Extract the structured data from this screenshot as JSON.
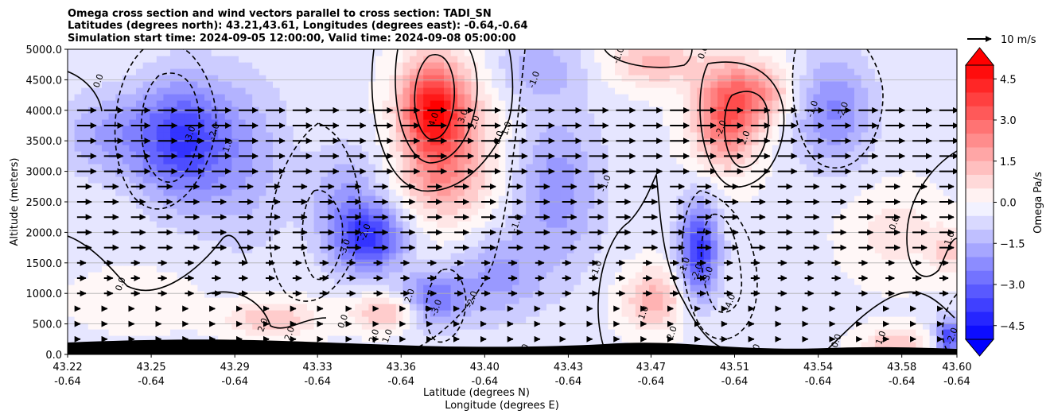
{
  "chart_data": {
    "type": "contour",
    "title_lines": [
      "Omega cross section and wind vectors parallel to cross section: TADI_SN",
      "Latitudes (degrees north): 43.21,43.61, Longitudes (degrees east): -0.64,-0.64",
      "Simulation start time: 2024-09-05 12:00:00, Valid time: 2024-09-08 05:00:00"
    ],
    "xlabel_line1": "Latitude (degrees N)",
    "xlabel_line2": "Longitude (degrees E)",
    "ylabel": "Altitude (meters)",
    "colorbar_label": "Omega Pa/s",
    "quiver_key_label": "10 m/s",
    "ylim": [
      0,
      5000
    ],
    "yticks": [
      "0.0",
      "500.0",
      "1000.0",
      "1500.0",
      "2000.0",
      "2500.0",
      "3000.0",
      "3500.0",
      "4000.0",
      "4500.0",
      "5000.0"
    ],
    "xticks": [
      {
        "lat": "43.22",
        "lon": "-0.64"
      },
      {
        "lat": "43.25",
        "lon": "-0.64"
      },
      {
        "lat": "43.29",
        "lon": "-0.64"
      },
      {
        "lat": "43.33",
        "lon": "-0.64"
      },
      {
        "lat": "43.36",
        "lon": "-0.64"
      },
      {
        "lat": "43.40",
        "lon": "-0.64"
      },
      {
        "lat": "43.43",
        "lon": "-0.64"
      },
      {
        "lat": "43.47",
        "lon": "-0.64"
      },
      {
        "lat": "43.51",
        "lon": "-0.64"
      },
      {
        "lat": "43.54",
        "lon": "-0.64"
      },
      {
        "lat": "43.58",
        "lon": "-0.64"
      },
      {
        "lat": "43.60",
        "lon": "-0.64"
      }
    ],
    "colorbar_ticks": [
      "4.5",
      "3.0",
      "1.5",
      "0.0",
      "−1.5",
      "−3.0",
      "−4.5"
    ],
    "colorbar_range": [
      -5.0,
      5.0
    ],
    "grid": true,
    "cells": [
      {
        "x": 0.05,
        "y": 3600,
        "v": -1.5,
        "s": 0.06,
        "h": 700
      },
      {
        "x": 0.13,
        "y": 3500,
        "v": -3.2,
        "s": 0.05,
        "h": 1000
      },
      {
        "x": 0.2,
        "y": 3200,
        "v": -1.2,
        "s": 0.05,
        "h": 1400
      },
      {
        "x": 0.08,
        "y": 900,
        "v": 0.4,
        "s": 0.07,
        "h": 500
      },
      {
        "x": 0.23,
        "y": 600,
        "v": 1.6,
        "s": 0.05,
        "h": 300
      },
      {
        "x": 0.34,
        "y": 1900,
        "v": -3.3,
        "s": 0.038,
        "h": 550
      },
      {
        "x": 0.31,
        "y": 2500,
        "v": -1.4,
        "s": 0.04,
        "h": 900
      },
      {
        "x": 0.36,
        "y": 700,
        "v": 1.8,
        "s": 0.04,
        "h": 280
      },
      {
        "x": 0.41,
        "y": 4000,
        "v": 4.6,
        "s": 0.036,
        "h": 800
      },
      {
        "x": 0.44,
        "y": 3300,
        "v": 1.6,
        "s": 0.05,
        "h": 1300
      },
      {
        "x": 0.41,
        "y": 2800,
        "v": 1.0,
        "s": 0.04,
        "h": 500
      },
      {
        "x": 0.41,
        "y": 900,
        "v": -2.4,
        "s": 0.035,
        "h": 450
      },
      {
        "x": 0.48,
        "y": 1300,
        "v": -1.6,
        "s": 0.05,
        "h": 700
      },
      {
        "x": 0.55,
        "y": 2700,
        "v": -1.7,
        "s": 0.05,
        "h": 1300
      },
      {
        "x": 0.53,
        "y": 4700,
        "v": -1.2,
        "s": 0.05,
        "h": 500
      },
      {
        "x": 0.66,
        "y": 4800,
        "v": 1.8,
        "s": 0.05,
        "h": 400
      },
      {
        "x": 0.66,
        "y": 900,
        "v": 1.9,
        "s": 0.035,
        "h": 500
      },
      {
        "x": 0.71,
        "y": 1700,
        "v": -3.6,
        "s": 0.022,
        "h": 800
      },
      {
        "x": 0.74,
        "y": 3900,
        "v": 3.4,
        "s": 0.036,
        "h": 800
      },
      {
        "x": 0.78,
        "y": 4300,
        "v": 2.0,
        "s": 0.04,
        "h": 500
      },
      {
        "x": 0.86,
        "y": 4000,
        "v": -2.0,
        "s": 0.045,
        "h": 900
      },
      {
        "x": 0.93,
        "y": 2000,
        "v": 0.9,
        "s": 0.05,
        "h": 700
      },
      {
        "x": 0.93,
        "y": 200,
        "v": 1.6,
        "s": 0.035,
        "h": 250
      },
      {
        "x": 0.99,
        "y": 300,
        "v": -3.2,
        "s": 0.014,
        "h": 300
      },
      {
        "x": 0.99,
        "y": 1700,
        "v": 1.2,
        "s": 0.02,
        "h": 400
      }
    ],
    "contour_labels": [
      {
        "text": "0.0",
        "x": 0.035,
        "y": 4480
      },
      {
        "text": "-3.0",
        "x": 0.138,
        "y": 3600
      },
      {
        "text": "-2.0",
        "x": 0.165,
        "y": 3650
      },
      {
        "text": "-1.0",
        "x": 0.18,
        "y": 3400
      },
      {
        "text": "0.0",
        "x": 0.06,
        "y": 1150
      },
      {
        "text": "2.0",
        "x": 0.22,
        "y": 480
      },
      {
        "text": "2.0",
        "x": 0.25,
        "y": 340
      },
      {
        "text": "0.0",
        "x": 0.31,
        "y": 540
      },
      {
        "text": "-3.0",
        "x": 0.312,
        "y": 1750
      },
      {
        "text": "-2.0",
        "x": 0.335,
        "y": 2000
      },
      {
        "text": "2.0",
        "x": 0.345,
        "y": 300
      },
      {
        "text": "1.0",
        "x": 0.36,
        "y": 300
      },
      {
        "text": "2.0",
        "x": 0.385,
        "y": 960
      },
      {
        "text": "-3.0",
        "x": 0.415,
        "y": 760
      },
      {
        "text": "-2.0",
        "x": 0.455,
        "y": 900
      },
      {
        "text": "4.0",
        "x": 0.412,
        "y": 3850
      },
      {
        "text": "3.0",
        "x": 0.445,
        "y": 3900
      },
      {
        "text": "2.0",
        "x": 0.458,
        "y": 3800
      },
      {
        "text": "0.0",
        "x": 0.485,
        "y": 3550
      },
      {
        "text": "1.0",
        "x": 0.494,
        "y": 3700
      },
      {
        "text": "-1.0",
        "x": 0.525,
        "y": 4500
      },
      {
        "text": "-1.0",
        "x": 0.605,
        "y": 2800
      },
      {
        "text": "-1.0",
        "x": 0.505,
        "y": 2150
      },
      {
        "text": "-1.0",
        "x": 0.595,
        "y": 1400
      },
      {
        "text": "0",
        "x": 0.515,
        "y": 120
      },
      {
        "text": "1.0",
        "x": 0.648,
        "y": 680
      },
      {
        "text": "2.0",
        "x": 0.68,
        "y": 350
      },
      {
        "text": "-1.0",
        "x": 0.694,
        "y": 1450
      },
      {
        "text": "-2.0",
        "x": 0.708,
        "y": 1350
      },
      {
        "text": "-3.0",
        "x": 0.72,
        "y": 1300
      },
      {
        "text": "-4.0",
        "x": 0.745,
        "y": 850
      },
      {
        "text": "0",
        "x": 0.775,
        "y": 120
      },
      {
        "text": "-1.0",
        "x": 0.62,
        "y": 4900
      },
      {
        "text": "0.0",
        "x": 0.715,
        "y": 4950
      },
      {
        "text": "-2.0",
        "x": 0.735,
        "y": 3700
      },
      {
        "text": "2.0",
        "x": 0.762,
        "y": 3550
      },
      {
        "text": "-2.0",
        "x": 0.872,
        "y": 4000
      },
      {
        "text": "-1.0",
        "x": 0.838,
        "y": 4020
      },
      {
        "text": "0.0",
        "x": 0.93,
        "y": 2150
      },
      {
        "text": "0.0",
        "x": 0.865,
        "y": 220
      },
      {
        "text": "1.0",
        "x": 0.915,
        "y": 270
      },
      {
        "text": "1.0",
        "x": 0.992,
        "y": 1900
      },
      {
        "text": "-2.0",
        "x": 0.995,
        "y": 300
      }
    ]
  }
}
